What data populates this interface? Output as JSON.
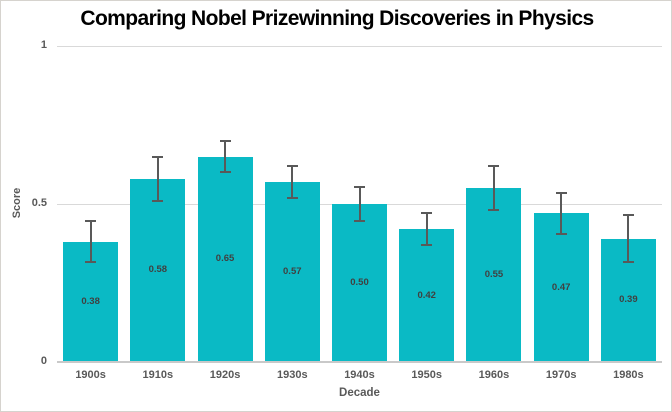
{
  "chart_data": {
    "type": "bar",
    "title": "Comparing Nobel Prizewinning Discoveries in Physics",
    "xlabel": "Decade",
    "ylabel": "Score",
    "categories": [
      "1900s",
      "1910s",
      "1920s",
      "1930s",
      "1940s",
      "1950s",
      "1960s",
      "1970s",
      "1980s"
    ],
    "values": [
      0.38,
      0.58,
      0.65,
      0.57,
      0.5,
      0.42,
      0.55,
      0.47,
      0.39
    ],
    "value_labels": [
      "0.38",
      "0.58",
      "0.65",
      "0.57",
      "0.50",
      "0.42",
      "0.55",
      "0.47",
      "0.39"
    ],
    "errors": [
      0.065,
      0.07,
      0.05,
      0.05,
      0.055,
      0.05,
      0.07,
      0.065,
      0.075
    ],
    "ylim": [
      0,
      1
    ],
    "yticks": [
      {
        "value": 0,
        "label": "0"
      },
      {
        "value": 0.5,
        "label": "0.5"
      },
      {
        "value": 1,
        "label": "1"
      }
    ],
    "grid": "horizontal",
    "legend": "none",
    "colors": {
      "bar": "#0ABAC5",
      "error_bar": "#595959",
      "gridline": "#D9D9D9",
      "axis_line": "#C9C9C9",
      "tick_text": "#595959",
      "value_text": "#404040",
      "title_text": "#000000",
      "background": "#FFFFFF",
      "frame_border": "#D6D3CE"
    }
  }
}
